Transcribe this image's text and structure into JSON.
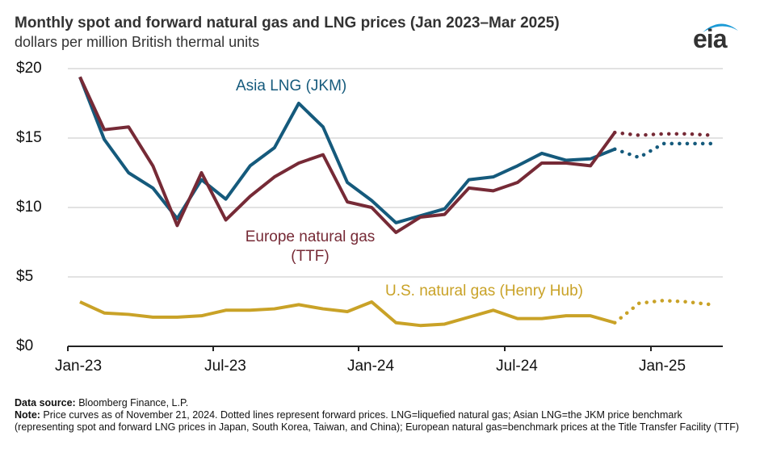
{
  "chart_data": {
    "type": "line",
    "title": "Monthly spot and forward natural gas and LNG prices (Jan 2023–Mar 2025)",
    "subtitle": "dollars per million British thermal units",
    "x": [
      "Jan-23",
      "Feb-23",
      "Mar-23",
      "Apr-23",
      "May-23",
      "Jun-23",
      "Jul-23",
      "Aug-23",
      "Sep-23",
      "Oct-23",
      "Nov-23",
      "Dec-23",
      "Jan-24",
      "Feb-24",
      "Mar-24",
      "Apr-24",
      "May-24",
      "Jun-24",
      "Jul-24",
      "Aug-24",
      "Sep-24",
      "Oct-24",
      "Nov-24",
      "Dec-24",
      "Jan-25",
      "Feb-25",
      "Mar-25"
    ],
    "x_tick_labels": [
      "Jan-23",
      "Jul-23",
      "Jan-24",
      "Jul-24",
      "Jan-25"
    ],
    "y_tick_labels": [
      "$0",
      "$5",
      "$10",
      "$15",
      "$20"
    ],
    "ylim": [
      0,
      20
    ],
    "grid": true,
    "forward_start": "Nov-24",
    "series": [
      {
        "name": "Asia LNG (JKM)",
        "color": "#155a7c",
        "values": [
          19.4,
          14.9,
          12.5,
          11.4,
          9.2,
          12.0,
          10.6,
          13.0,
          14.3,
          17.5,
          15.8,
          11.8,
          10.5,
          8.9,
          9.4,
          9.9,
          12.0,
          12.2,
          13.0,
          13.9,
          13.4,
          13.5,
          14.2,
          13.6,
          14.6,
          14.6,
          14.6
        ]
      },
      {
        "name": "Europe natural gas (TTF)",
        "color": "#762a36",
        "values": [
          19.4,
          15.6,
          15.8,
          13.0,
          8.7,
          12.5,
          9.1,
          10.8,
          12.2,
          13.2,
          13.8,
          10.4,
          10.0,
          8.2,
          9.3,
          9.5,
          11.4,
          11.2,
          11.8,
          13.2,
          13.2,
          13.0,
          15.4,
          15.2,
          15.3,
          15.3,
          15.2
        ]
      },
      {
        "name": "U.S. natural gas (Henry Hub)",
        "color": "#c9a227",
        "values": [
          3.2,
          2.4,
          2.3,
          2.1,
          2.1,
          2.2,
          2.6,
          2.6,
          2.7,
          3.0,
          2.7,
          2.5,
          3.2,
          1.7,
          1.5,
          1.6,
          2.1,
          2.6,
          2.0,
          2.0,
          2.2,
          2.2,
          1.7,
          3.1,
          3.3,
          3.2,
          3.0
        ]
      }
    ],
    "series_labels": {
      "asia": "Asia LNG (JKM)",
      "europe_line1": "Europe natural gas",
      "europe_line2": "(TTF)",
      "us": "U.S. natural gas (Henry Hub)"
    }
  },
  "logo": "eia",
  "footer": {
    "source_label": "Data source:",
    "source_text": " Bloomberg Finance, L.P.",
    "note_label": "Note:",
    "note_text": " Price curves as of November 21, 2024. Dotted lines represent forward prices. LNG=liquefied natural gas; Asian LNG=the JKM price benchmark (representing spot and forward LNG prices in Japan, South Korea, Taiwan, and China); European natural gas=benchmark prices at the Title Transfer Facility (TTF)"
  }
}
